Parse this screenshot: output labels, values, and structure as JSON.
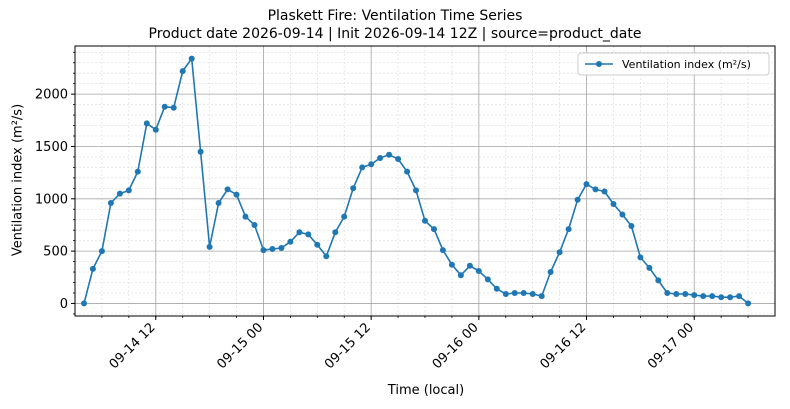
{
  "chart_data": {
    "type": "line",
    "title": "Plaskett Fire: Ventilation Time Series",
    "subtitle": "Product date 2026-09-14 | Init 2026-09-14 12Z | source=product_date",
    "xlabel": "Time (local)",
    "ylabel": "Ventilation index (m²/s)",
    "xlim": [
      "2026-09-14 03:00",
      "2026-09-17 09:00"
    ],
    "ylim": [
      -120,
      2460
    ],
    "y_ticks": [
      0,
      500,
      1000,
      1500,
      2000
    ],
    "x_ticks": [
      "09-14 12",
      "09-15 00",
      "09-15 12",
      "09-16 00",
      "09-16 12",
      "09-17 00"
    ],
    "grid": true,
    "legend_position": "top-right",
    "series": [
      {
        "name": "Ventilation index (m²/s)",
        "color": "#1f77b4",
        "marker": "circle",
        "x": [
          "2026-09-14 04:00",
          "2026-09-14 05:00",
          "2026-09-14 06:00",
          "2026-09-14 07:00",
          "2026-09-14 08:00",
          "2026-09-14 09:00",
          "2026-09-14 10:00",
          "2026-09-14 11:00",
          "2026-09-14 12:00",
          "2026-09-14 13:00",
          "2026-09-14 14:00",
          "2026-09-14 15:00",
          "2026-09-14 16:00",
          "2026-09-14 17:00",
          "2026-09-14 18:00",
          "2026-09-14 19:00",
          "2026-09-14 20:00",
          "2026-09-14 21:00",
          "2026-09-14 22:00",
          "2026-09-14 23:00",
          "2026-09-15 00:00",
          "2026-09-15 01:00",
          "2026-09-15 02:00",
          "2026-09-15 03:00",
          "2026-09-15 04:00",
          "2026-09-15 05:00",
          "2026-09-15 06:00",
          "2026-09-15 07:00",
          "2026-09-15 08:00",
          "2026-09-15 09:00",
          "2026-09-15 10:00",
          "2026-09-15 11:00",
          "2026-09-15 12:00",
          "2026-09-15 13:00",
          "2026-09-15 14:00",
          "2026-09-15 15:00",
          "2026-09-15 16:00",
          "2026-09-15 17:00",
          "2026-09-15 18:00",
          "2026-09-15 19:00",
          "2026-09-15 20:00",
          "2026-09-15 21:00",
          "2026-09-15 22:00",
          "2026-09-15 23:00",
          "2026-09-16 00:00",
          "2026-09-16 01:00",
          "2026-09-16 02:00",
          "2026-09-16 03:00",
          "2026-09-16 04:00",
          "2026-09-16 05:00",
          "2026-09-16 06:00",
          "2026-09-16 07:00",
          "2026-09-16 08:00",
          "2026-09-16 09:00",
          "2026-09-16 10:00",
          "2026-09-16 11:00",
          "2026-09-16 12:00",
          "2026-09-16 13:00",
          "2026-09-16 14:00",
          "2026-09-16 15:00",
          "2026-09-16 16:00",
          "2026-09-16 17:00",
          "2026-09-16 18:00",
          "2026-09-16 19:00",
          "2026-09-16 20:00",
          "2026-09-16 21:00",
          "2026-09-16 22:00",
          "2026-09-16 23:00",
          "2026-09-17 00:00",
          "2026-09-17 01:00",
          "2026-09-17 02:00",
          "2026-09-17 03:00",
          "2026-09-17 04:00",
          "2026-09-17 05:00",
          "2026-09-17 06:00"
        ],
        "y": [
          0,
          330,
          500,
          960,
          1050,
          1080,
          1260,
          1720,
          1660,
          1880,
          1870,
          2220,
          2340,
          1450,
          540,
          960,
          1090,
          1040,
          830,
          750,
          510,
          520,
          530,
          590,
          680,
          660,
          560,
          450,
          680,
          830,
          1100,
          1300,
          1330,
          1390,
          1420,
          1380,
          1260,
          1080,
          790,
          710,
          510,
          370,
          270,
          360,
          310,
          230,
          140,
          90,
          100,
          100,
          90,
          70,
          300,
          490,
          710,
          990,
          1140,
          1090,
          1070,
          950,
          850,
          740,
          440,
          340,
          220,
          100,
          90,
          90,
          80,
          70,
          70,
          60,
          60,
          70,
          0
        ]
      }
    ]
  }
}
